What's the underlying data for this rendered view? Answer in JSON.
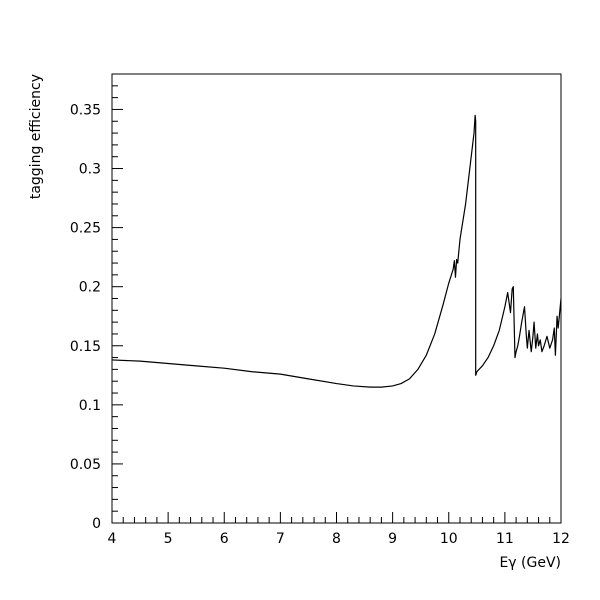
{
  "chart_data": {
    "type": "line",
    "title": "",
    "xlabel": "Eγ (GeV)",
    "ylabel": "tagging efficiency",
    "xlim": [
      4,
      12
    ],
    "ylim": [
      0,
      0.38
    ],
    "grid": false,
    "x_ticks": [
      4,
      5,
      6,
      7,
      8,
      9,
      10,
      11,
      12
    ],
    "x_tick_labels": [
      "4",
      "5",
      "6",
      "7",
      "8",
      "9",
      "10",
      "11",
      "12"
    ],
    "y_ticks": [
      0,
      0.05,
      0.1,
      0.15,
      0.2,
      0.25,
      0.3,
      0.35
    ],
    "y_tick_labels": [
      "0",
      "0.05",
      "0.1",
      "0.15",
      "0.2",
      "0.25",
      "0.3",
      "0.35"
    ],
    "series": [
      {
        "x": [
          4.0,
          4.5,
          5.0,
          5.5,
          6.0,
          6.5,
          7.0,
          7.5,
          8.0,
          8.3,
          8.6,
          8.8,
          9.0,
          9.15,
          9.3,
          9.45,
          9.6,
          9.75,
          9.9,
          10.0,
          10.08,
          10.1,
          10.12,
          10.14,
          10.16,
          10.2,
          10.3,
          10.4,
          10.45,
          10.47,
          10.48,
          10.48,
          10.5,
          10.6,
          10.7,
          10.8,
          10.9,
          11.0,
          11.05,
          11.1,
          11.13,
          11.15,
          11.18,
          11.2,
          11.23,
          11.26,
          11.3,
          11.35,
          11.38,
          11.4,
          11.43,
          11.47,
          11.5,
          11.52,
          11.55,
          11.58,
          11.6,
          11.63,
          11.66,
          11.7,
          11.75,
          11.8,
          11.85,
          11.88,
          11.9,
          11.93,
          11.95,
          11.98,
          12.0
        ],
        "y": [
          0.138,
          0.137,
          0.135,
          0.133,
          0.131,
          0.128,
          0.126,
          0.122,
          0.118,
          0.116,
          0.115,
          0.115,
          0.116,
          0.118,
          0.122,
          0.13,
          0.142,
          0.16,
          0.185,
          0.203,
          0.215,
          0.222,
          0.208,
          0.223,
          0.22,
          0.24,
          0.27,
          0.31,
          0.33,
          0.345,
          0.34,
          0.125,
          0.128,
          0.133,
          0.14,
          0.15,
          0.163,
          0.183,
          0.195,
          0.178,
          0.198,
          0.2,
          0.14,
          0.145,
          0.15,
          0.158,
          0.17,
          0.183,
          0.16,
          0.148,
          0.163,
          0.145,
          0.158,
          0.17,
          0.148,
          0.16,
          0.15,
          0.155,
          0.145,
          0.15,
          0.158,
          0.148,
          0.155,
          0.165,
          0.142,
          0.175,
          0.165,
          0.18,
          0.19
        ]
      }
    ]
  }
}
